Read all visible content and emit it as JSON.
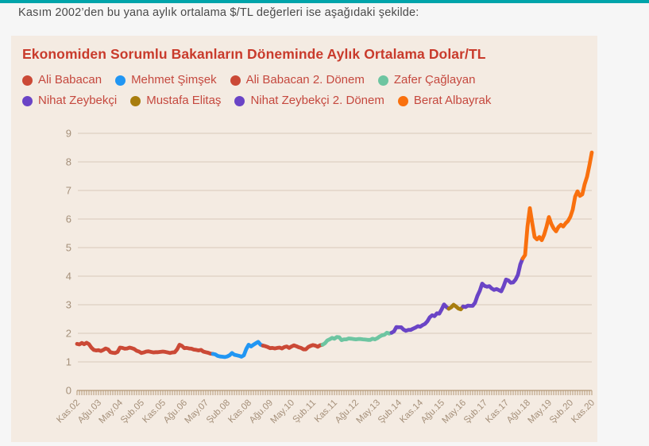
{
  "page": {
    "accent_bar_color": "#00a4aa",
    "intro_text": "Kasım 2002’den bu yana aylık ortalama $/TL değerleri ise aşağıdaki şekilde:",
    "background_color": "#f6f6f6"
  },
  "chart_data": {
    "type": "line",
    "title": "Ekonomiden Sorumlu Bakanların Döneminde Aylık Ortalama Dolar/TL",
    "title_color": "#c93b2c",
    "legend_text_color": "#c5483e",
    "legend_position": "top",
    "background": "#f4ebe2",
    "grid": true,
    "grid_color": "#d9cabb",
    "axis_text_color": "#a5907a",
    "tick_color": "#b29776",
    "ylabel": "",
    "xlabel": "",
    "ylim": [
      0,
      9
    ],
    "y_ticks": [
      0,
      1,
      2,
      3,
      4,
      5,
      6,
      7,
      8,
      9
    ],
    "x_unit": "month",
    "months_total": 217,
    "x_label_every_months": 9,
    "x_tick_labels": [
      "Kas.02",
      "Ağu.03",
      "May.04",
      "Şub.05",
      "Kas.05",
      "Ağu.06",
      "May.07",
      "Şub.08",
      "Kas.08",
      "Ağu.09",
      "May.10",
      "Şub.11",
      "Kas.11",
      "Ağu.12",
      "May.13",
      "Şub.14",
      "Kas.14",
      "Ağu.15",
      "May.16",
      "Şub.17",
      "Kas.17",
      "Ağu.18",
      "May.19",
      "Şub.20",
      "Kas.20"
    ],
    "segments": [
      {
        "label": "Ali Babacan",
        "color": "#cb4936",
        "period": {
          "from": "Kas.02",
          "to": "Ağu.07"
        },
        "values": [
          1.63,
          1.61,
          1.66,
          1.62,
          1.67,
          1.62,
          1.5,
          1.42,
          1.4,
          1.41,
          1.38,
          1.42,
          1.47,
          1.44,
          1.34,
          1.32,
          1.31,
          1.35,
          1.5,
          1.49,
          1.46,
          1.47,
          1.5,
          1.48,
          1.45,
          1.39,
          1.36,
          1.31,
          1.33,
          1.36,
          1.37,
          1.35,
          1.33,
          1.34,
          1.34,
          1.35,
          1.36,
          1.35,
          1.33,
          1.31,
          1.33,
          1.34,
          1.44,
          1.6,
          1.56,
          1.48,
          1.49,
          1.47,
          1.46,
          1.43,
          1.42,
          1.4,
          1.42,
          1.36,
          1.34,
          1.32,
          1.29,
          1.28
        ]
      },
      {
        "label": "Mehmet Şimşek",
        "color": "#2196f3",
        "period": {
          "from": "Eyl.07",
          "to": "May.09"
        },
        "values": [
          1.26,
          1.21,
          1.19,
          1.18,
          1.17,
          1.19,
          1.23,
          1.31,
          1.25,
          1.23,
          1.21,
          1.18,
          1.23,
          1.45,
          1.6,
          1.54,
          1.6,
          1.65,
          1.7,
          1.6,
          1.57
        ]
      },
      {
        "label": "Ali Babacan 2. Dönem",
        "color": "#cb4936",
        "period": {
          "from": "Haz.09",
          "to": "Haz.11"
        },
        "values": [
          1.55,
          1.52,
          1.48,
          1.49,
          1.47,
          1.49,
          1.5,
          1.47,
          1.52,
          1.54,
          1.49,
          1.54,
          1.58,
          1.55,
          1.51,
          1.49,
          1.44,
          1.44,
          1.52,
          1.56,
          1.59,
          1.57,
          1.53,
          1.58,
          1.6
        ]
      },
      {
        "label": "Zafer Çağlayan",
        "color": "#6dc5a1",
        "period": {
          "from": "Tem.11",
          "to": "Kas.13"
        },
        "values": [
          1.65,
          1.75,
          1.79,
          1.84,
          1.81,
          1.87,
          1.86,
          1.76,
          1.79,
          1.79,
          1.82,
          1.81,
          1.8,
          1.79,
          1.8,
          1.8,
          1.79,
          1.78,
          1.77,
          1.77,
          1.81,
          1.79,
          1.83,
          1.89,
          1.93,
          1.95,
          2.02,
          1.99,
          2.02
        ]
      },
      {
        "label": "Nihat Zeybekçi",
        "color": "#6a44c6",
        "period": {
          "from": "Ara.13",
          "to": "Kas.15"
        },
        "values": [
          2.07,
          2.22,
          2.21,
          2.21,
          2.13,
          2.09,
          2.12,
          2.12,
          2.16,
          2.2,
          2.25,
          2.23,
          2.29,
          2.33,
          2.42,
          2.56,
          2.63,
          2.6,
          2.7,
          2.69,
          2.84,
          3.01,
          2.92,
          2.86
        ]
      },
      {
        "label": "Mustafa Elitaş",
        "color": "#a87d0e",
        "period": {
          "from": "Ara.15",
          "to": "May.16"
        },
        "values": [
          2.91,
          3.0,
          2.94,
          2.87,
          2.84,
          2.94
        ]
      },
      {
        "label": "Nihat Zeybekçi 2. Dönem",
        "color": "#6a44c6",
        "period": {
          "from": "Haz.16",
          "to": "Haz.18"
        },
        "values": [
          2.92,
          2.97,
          2.96,
          2.96,
          3.07,
          3.31,
          3.49,
          3.74,
          3.66,
          3.63,
          3.65,
          3.57,
          3.52,
          3.55,
          3.51,
          3.47,
          3.65,
          3.88,
          3.85,
          3.77,
          3.78,
          3.88,
          4.05,
          4.41,
          4.62
        ]
      },
      {
        "label": "Berat Albayrak",
        "color": "#f9700e",
        "period": {
          "from": "Tem.18",
          "to": "Kas.20"
        },
        "values": [
          4.74,
          5.73,
          6.38,
          5.86,
          5.37,
          5.29,
          5.37,
          5.26,
          5.45,
          5.73,
          6.07,
          5.83,
          5.67,
          5.57,
          5.72,
          5.8,
          5.74,
          5.85,
          5.93,
          6.08,
          6.33,
          6.78,
          6.97,
          6.81,
          6.86,
          7.22,
          7.48,
          7.88,
          8.33
        ]
      }
    ]
  }
}
